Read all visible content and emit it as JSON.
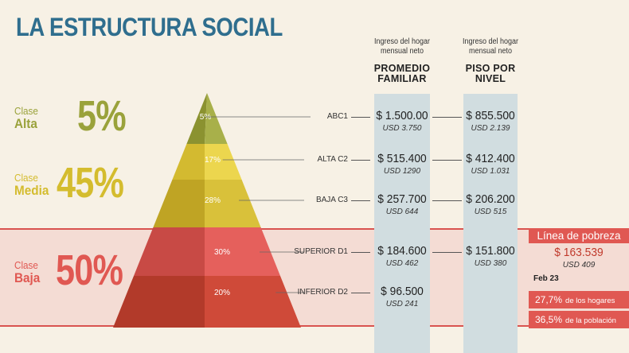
{
  "title": "LA ESTRUCTURA SOCIAL",
  "columns": {
    "promedio": {
      "subtitle_1": "Ingreso del hogar",
      "subtitle_2": "mensual neto",
      "heading_1": "PROMEDIO",
      "heading_2": "FAMILIAR"
    },
    "piso": {
      "subtitle_1": "Ingreso del hogar",
      "subtitle_2": "mensual neto",
      "heading_1": "PISO POR",
      "heading_2": "NIVEL"
    }
  },
  "classes": [
    {
      "word": "Clase",
      "name": "Alta",
      "percent": "5%",
      "color": "#9aa23b"
    },
    {
      "word": "Clase",
      "name": "Media",
      "percent": "45%",
      "color": "#d4bc2e"
    },
    {
      "word": "Clase",
      "name": "Baja",
      "percent": "50%",
      "color": "#e05852"
    }
  ],
  "chart_data": {
    "type": "table",
    "levels": [
      {
        "label": "ABC1",
        "percent": "5%",
        "share": 5,
        "color_light": "#a8b04a",
        "color_dark": "#8b9230",
        "promedio": "$ 1.500.00",
        "promedio_usd": "USD 3.750",
        "piso": "$ 855.500",
        "piso_usd": "USD 2.139"
      },
      {
        "label": "ALTA C2",
        "percent": "17%",
        "share": 17,
        "color_light": "#ecd64e",
        "color_dark": "#d3ba30",
        "promedio": "$ 515.400",
        "promedio_usd": "USD 1290",
        "piso": "$ 412.400",
        "piso_usd": "USD 1.031"
      },
      {
        "label": "BAJA C3",
        "percent": "28%",
        "share": 28,
        "color_light": "#d9c13a",
        "color_dark": "#bfa424",
        "promedio": "$ 257.700",
        "promedio_usd": "USD 644",
        "piso": "$ 206.200",
        "piso_usd": "USD 515"
      },
      {
        "label": "SUPERIOR D1",
        "percent": "30%",
        "share": 30,
        "color_light": "#e5605c",
        "color_dark": "#c84a45",
        "promedio": "$ 184.600",
        "promedio_usd": "USD 462",
        "piso": "$ 151.800",
        "piso_usd": "USD 380"
      },
      {
        "label": "INFERIOR D2",
        "percent": "20%",
        "share": 20,
        "color_light": "#cf4a39",
        "color_dark": "#b23a2a",
        "promedio": "$ 96.500",
        "promedio_usd": "USD 241",
        "piso": "",
        "piso_usd": ""
      }
    ]
  },
  "poverty": {
    "title": "Línea de pobreza",
    "price": "$ 163.539",
    "usd": "USD 409",
    "date": "Feb 23",
    "stats": [
      {
        "value": "27,7",
        "unit": "%",
        "text": "de los hogares"
      },
      {
        "value": "36,5",
        "unit": "%",
        "text": "de la población"
      }
    ]
  }
}
